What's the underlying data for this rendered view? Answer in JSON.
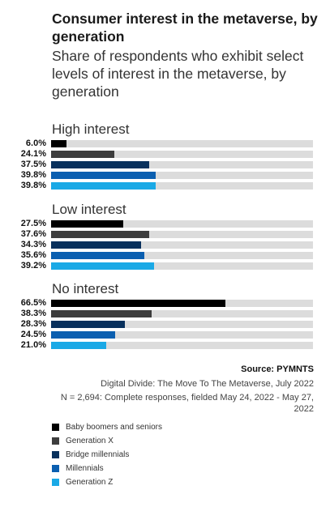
{
  "title": "Consumer interest in the metaverse, by generation",
  "subtitle": "Share of respondents who exhibit select levels of interest in the metaverse, by generation",
  "source": "Source: PYMNTS",
  "note1": "Digital Divide: The Move To The Metaverse, July 2022",
  "note2": "N = 2,694: Complete responses, fielded May 24, 2022 - May 27, 2022",
  "colors": {
    "track": "#dcdcdc",
    "Baby boomers and seniors": "#000000",
    "Generation X": "#3d3d3d",
    "Bridge millennials": "#08305c",
    "Millennials": "#0b5fb0",
    "Generation Z": "#1aa9e6"
  },
  "chart_data": {
    "type": "bar",
    "orientation": "horizontal",
    "xlim": [
      0,
      100
    ],
    "groups": [
      {
        "label": "High interest",
        "values": [
          6.0,
          24.1,
          37.5,
          39.8,
          39.8
        ],
        "value_labels": [
          "6.0%",
          "24.1%",
          "37.5%",
          "39.8%",
          "39.8%"
        ]
      },
      {
        "label": "Low interest",
        "values": [
          27.5,
          37.6,
          34.3,
          35.6,
          39.2
        ],
        "value_labels": [
          "27.5%",
          "37.6%",
          "34.3%",
          "35.6%",
          "39.2%"
        ]
      },
      {
        "label": "No interest",
        "values": [
          66.5,
          38.3,
          28.3,
          24.5,
          21.0
        ],
        "value_labels": [
          "66.5%",
          "38.3%",
          "28.3%",
          "24.5%",
          "21.0%"
        ]
      }
    ],
    "series": [
      {
        "name": "Baby boomers and seniors"
      },
      {
        "name": "Generation X"
      },
      {
        "name": "Bridge millennials"
      },
      {
        "name": "Millennials"
      },
      {
        "name": "Generation Z"
      }
    ],
    "legend": "bottom-left"
  }
}
